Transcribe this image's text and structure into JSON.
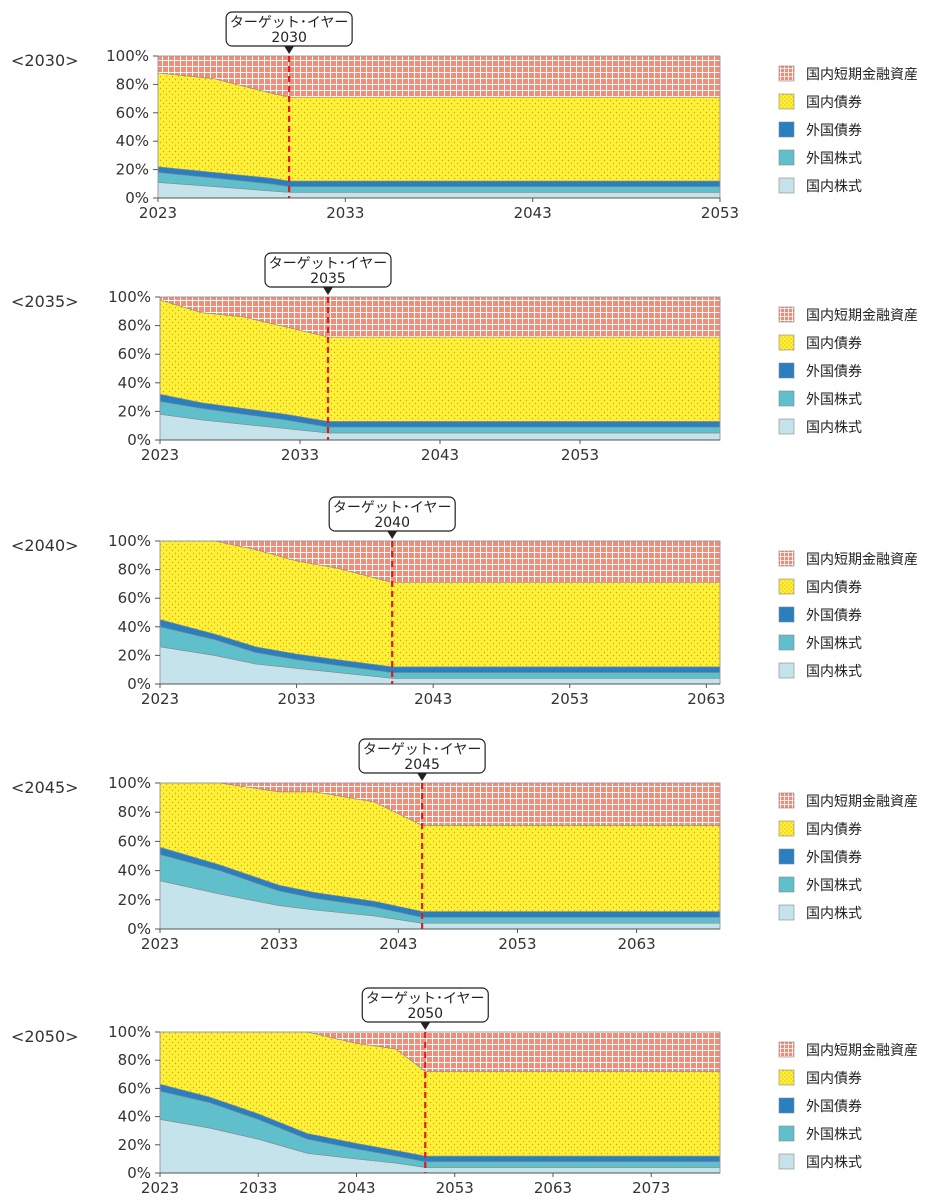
{
  "chart_data": [
    {
      "type": "area",
      "stacked": true,
      "panel_label": "<2030>",
      "callout": {
        "line1": "ターゲット･イヤー",
        "line2": "2030"
      },
      "target_year": 2030,
      "x_range": [
        2023,
        2053
      ],
      "x_ticks": [
        2023,
        2033,
        2043,
        2053
      ],
      "x_tick_labels": [
        "2023",
        "2033",
        "2043",
        "2053"
      ],
      "y_range": [
        0,
        100
      ],
      "y_tick_labels": [
        "0%",
        "20%",
        "40%",
        "60%",
        "80%",
        "100%"
      ],
      "x": [
        2023,
        2026,
        2029,
        2030,
        2053
      ],
      "series": [
        {
          "name": "国内株式",
          "values": [
            11,
            8,
            5,
            4,
            4
          ]
        },
        {
          "name": "外国株式",
          "values": [
            7,
            6,
            5,
            4,
            4
          ]
        },
        {
          "name": "外国債券",
          "values": [
            4,
            4,
            4,
            4,
            4
          ]
        },
        {
          "name": "国内債券",
          "values": [
            66,
            66,
            60,
            59,
            59
          ]
        },
        {
          "name": "国内短期金融資産",
          "values": [
            12,
            16,
            26,
            29,
            29
          ]
        }
      ]
    },
    {
      "type": "area",
      "stacked": true,
      "panel_label": "<2035>",
      "callout": {
        "line1": "ターゲット･イヤー",
        "line2": "2035"
      },
      "target_year": 2035,
      "x_range": [
        2023,
        2063
      ],
      "x_ticks": [
        2023,
        2033,
        2043,
        2053
      ],
      "x_tick_labels": [
        "2023",
        "2033",
        "2043",
        "2053"
      ],
      "y_range": [
        0,
        100
      ],
      "y_tick_labels": [
        "0%",
        "20%",
        "40%",
        "60%",
        "80%",
        "100%"
      ],
      "x": [
        2023,
        2026,
        2029,
        2032,
        2035,
        2063
      ],
      "series": [
        {
          "name": "国内株式",
          "values": [
            18,
            14,
            11,
            8,
            5,
            5
          ]
        },
        {
          "name": "外国株式",
          "values": [
            9,
            8,
            7,
            6,
            4,
            4
          ]
        },
        {
          "name": "外国債券",
          "values": [
            5,
            4,
            4,
            4,
            4,
            4
          ]
        },
        {
          "name": "国内債券",
          "values": [
            66,
            63,
            64,
            61,
            59,
            59
          ]
        },
        {
          "name": "国内短期金融資産",
          "values": [
            2,
            11,
            14,
            21,
            28,
            28
          ]
        }
      ]
    },
    {
      "type": "area",
      "stacked": true,
      "panel_label": "<2040>",
      "callout": {
        "line1": "ターゲット･イヤー",
        "line2": "2040"
      },
      "target_year": 2040,
      "x_range": [
        2023,
        2064
      ],
      "x_ticks": [
        2023,
        2033,
        2043,
        2053,
        2063
      ],
      "x_tick_labels": [
        "2023",
        "2033",
        "2043",
        "2053",
        "2063"
      ],
      "y_range": [
        0,
        100
      ],
      "y_tick_labels": [
        "0%",
        "20%",
        "40%",
        "60%",
        "80%",
        "100%"
      ],
      "x": [
        2023,
        2027,
        2030,
        2033,
        2036,
        2040,
        2064
      ],
      "series": [
        {
          "name": "国内株式",
          "values": [
            26,
            20,
            14,
            11,
            8,
            4,
            4
          ]
        },
        {
          "name": "外国株式",
          "values": [
            14,
            11,
            8,
            6,
            5,
            4,
            4
          ]
        },
        {
          "name": "外国債券",
          "values": [
            5,
            4,
            4,
            4,
            4,
            4,
            4
          ]
        },
        {
          "name": "国内債券",
          "values": [
            55,
            65,
            68,
            65,
            64,
            59,
            59
          ]
        },
        {
          "name": "国内短期金融資産",
          "values": [
            0,
            0,
            6,
            14,
            19,
            29,
            29
          ]
        }
      ]
    },
    {
      "type": "area",
      "stacked": true,
      "panel_label": "<2045>",
      "callout": {
        "line1": "ターゲット･イヤー",
        "line2": "2045"
      },
      "target_year": 2045,
      "x_range": [
        2023,
        2070
      ],
      "x_ticks": [
        2023,
        2033,
        2043,
        2053,
        2063
      ],
      "x_tick_labels": [
        "2023",
        "2033",
        "2043",
        "2053",
        "2063"
      ],
      "y_range": [
        0,
        100
      ],
      "y_tick_labels": [
        "0%",
        "20%",
        "40%",
        "60%",
        "80%",
        "100%"
      ],
      "x": [
        2023,
        2028,
        2033,
        2036,
        2041,
        2045,
        2070
      ],
      "series": [
        {
          "name": "国内株式",
          "values": [
            33,
            24,
            16,
            13,
            9,
            4,
            4
          ]
        },
        {
          "name": "外国株式",
          "values": [
            18,
            16,
            10,
            8,
            6,
            4,
            4
          ]
        },
        {
          "name": "外国債券",
          "values": [
            5,
            4,
            4,
            4,
            4,
            4,
            4
          ]
        },
        {
          "name": "国内債券",
          "values": [
            44,
            56,
            64,
            69,
            68,
            59,
            59
          ]
        },
        {
          "name": "国内短期金融資産",
          "values": [
            0,
            0,
            6,
            6,
            13,
            29,
            29
          ]
        }
      ]
    },
    {
      "type": "area",
      "stacked": true,
      "panel_label": "<2050>",
      "callout": {
        "line1": "ターゲット･イヤー",
        "line2": "2050"
      },
      "target_year": 2050,
      "x_range": [
        2023,
        2080
      ],
      "x_ticks": [
        2023,
        2033,
        2043,
        2053,
        2063,
        2073
      ],
      "x_tick_labels": [
        "2023",
        "2033",
        "2043",
        "2053",
        "2063",
        "2073"
      ],
      "y_range": [
        0,
        100
      ],
      "y_tick_labels": [
        "0%",
        "20%",
        "40%",
        "60%",
        "80%",
        "100%"
      ],
      "x": [
        2023,
        2028,
        2033,
        2038,
        2043,
        2047,
        2050,
        2080
      ],
      "series": [
        {
          "name": "国内株式",
          "values": [
            38,
            32,
            24,
            14,
            10,
            7,
            4,
            4
          ]
        },
        {
          "name": "外国株式",
          "values": [
            20,
            18,
            14,
            10,
            7,
            5,
            4,
            4
          ]
        },
        {
          "name": "外国債券",
          "values": [
            5,
            4,
            4,
            4,
            4,
            4,
            4,
            4
          ]
        },
        {
          "name": "国内債券",
          "values": [
            37,
            46,
            58,
            72,
            71,
            72,
            60,
            60
          ]
        },
        {
          "name": "国内短期金融資産",
          "values": [
            0,
            0,
            0,
            0,
            8,
            12,
            28,
            28
          ]
        }
      ]
    }
  ],
  "legend_items": [
    "国内短期金融資産",
    "国内債券",
    "外国債券",
    "外国株式",
    "国内株式"
  ],
  "legend_swatch_styles": [
    "grid-salmon",
    "dot-yellow",
    "solid-blue",
    "solid-teal",
    "solid-lightblue"
  ],
  "colors": {
    "国内株式": "#c5e3ea",
    "外国株式": "#5fbfcb",
    "外国債券": "#2a7fc0",
    "国内債券": "#fff03a",
    "国内短期金融資産": "#ef8a74",
    "target_line": "#e21a1a"
  }
}
